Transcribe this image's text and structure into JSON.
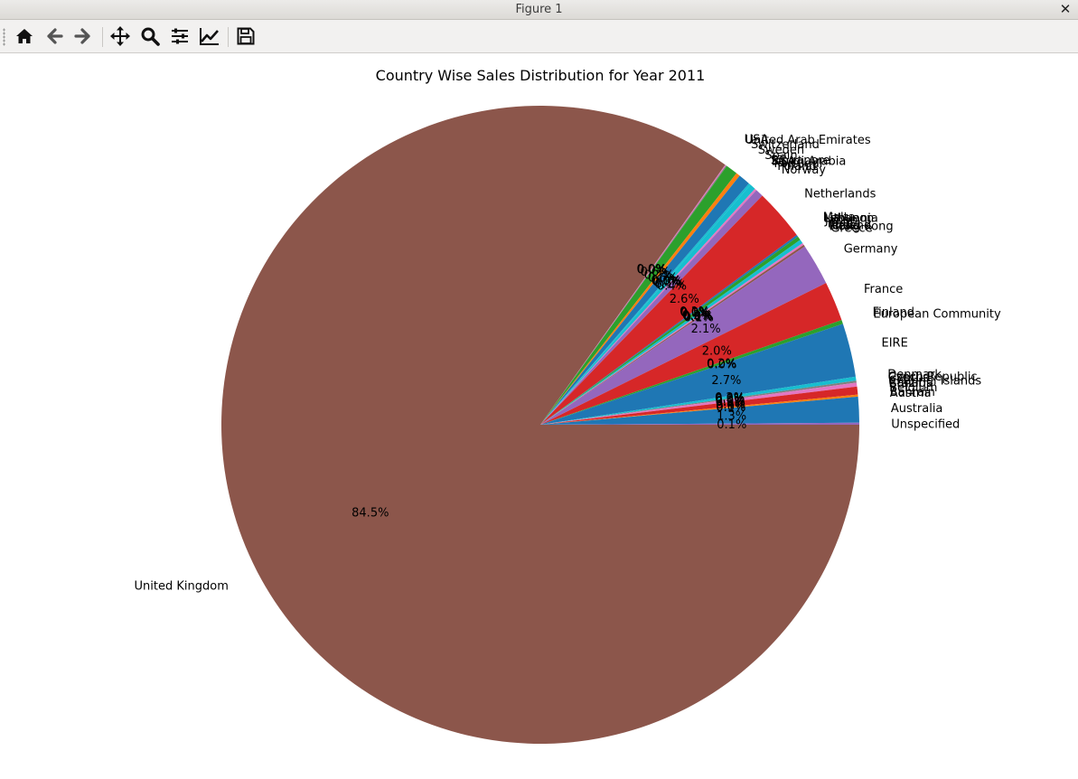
{
  "window": {
    "title": "Figure 1"
  },
  "toolbar": {
    "buttons": [
      {
        "name": "home-button",
        "icon": "home-icon"
      },
      {
        "name": "back-button",
        "icon": "arrow-left-icon"
      },
      {
        "name": "forward-button",
        "icon": "arrow-right-icon"
      },
      {
        "name": "pan-button",
        "icon": "move-icon"
      },
      {
        "name": "zoom-button",
        "icon": "magnifier-icon"
      },
      {
        "name": "configure-subplots-button",
        "icon": "sliders-icon"
      },
      {
        "name": "edit-axis-button",
        "icon": "line-chart-icon"
      },
      {
        "name": "save-button",
        "icon": "floppy-disk-icon"
      }
    ]
  },
  "chart_data": {
    "type": "pie",
    "title": "Country Wise Sales Distribution for Year 2011",
    "startangle_deg": 0,
    "counterclock": false,
    "slices": [
      {
        "label": "United Kingdom",
        "value": 84.5,
        "pct_label": "84.5%",
        "color": "#8c564b"
      },
      {
        "label": "USA",
        "value": 0.05,
        "pct_label": "0.0%",
        "color": "#e377c2"
      },
      {
        "label": "United Arab Emirates",
        "value": 0.05,
        "pct_label": "0.0%",
        "color": "#7f7f7f"
      },
      {
        "label": "Switzerland",
        "value": 0.6,
        "pct_label": "0.6%",
        "color": "#2ca02c"
      },
      {
        "label": "Sweden",
        "value": 0.2,
        "pct_label": "0.2%",
        "color": "#ff7f0e"
      },
      {
        "label": "Spain",
        "value": 0.6,
        "pct_label": "0.6%",
        "color": "#1f77b4"
      },
      {
        "label": "Singapore",
        "value": 0.1,
        "pct_label": "0.1%",
        "color": "#17becf"
      },
      {
        "label": "Saudi Arabia",
        "value": 0.0,
        "pct_label": "0.0%",
        "color": "#bcbd22"
      },
      {
        "label": "RSA",
        "value": 0.0,
        "pct_label": "0.0%",
        "color": "#7f7f7f"
      },
      {
        "label": "Portugal",
        "value": 0.3,
        "pct_label": "0.3%",
        "color": "#17becf"
      },
      {
        "label": "Poland",
        "value": 0.1,
        "pct_label": "0.1%",
        "color": "#e377c2"
      },
      {
        "label": "Norway",
        "value": 0.4,
        "pct_label": "0.4%",
        "color": "#9467bd"
      },
      {
        "label": "Netherlands",
        "value": 2.6,
        "pct_label": "2.6%",
        "color": "#d62728"
      },
      {
        "label": "Malta",
        "value": 0.1,
        "pct_label": "0.1%",
        "color": "#1f77b4"
      },
      {
        "label": "Lithuania",
        "value": 0.0,
        "pct_label": "0.0%",
        "color": "#ff7f0e"
      },
      {
        "label": "Lebanon",
        "value": 0.0,
        "pct_label": "0.0%",
        "color": "#7f7f7f"
      },
      {
        "label": "Japan",
        "value": 0.2,
        "pct_label": "0.2%",
        "color": "#2ca02c"
      },
      {
        "label": "Italy",
        "value": 0.2,
        "pct_label": "0.2%",
        "color": "#17becf"
      },
      {
        "label": "Israel",
        "value": 0.0,
        "pct_label": "0.0%",
        "color": "#bcbd22"
      },
      {
        "label": "Iceland",
        "value": 0.0,
        "pct_label": "0.0%",
        "color": "#ff7f0e"
      },
      {
        "label": "Hong Kong",
        "value": 0.1,
        "pct_label": "0.1%",
        "color": "#e377c2"
      },
      {
        "label": "Greece",
        "value": 0.1,
        "pct_label": "0.1%",
        "color": "#8c564b"
      },
      {
        "label": "Germany",
        "value": 2.1,
        "pct_label": "2.1%",
        "color": "#9467bd"
      },
      {
        "label": "France",
        "value": 2.0,
        "pct_label": "2.0%",
        "color": "#d62728"
      },
      {
        "label": "Finland",
        "value": 0.2,
        "pct_label": "0.2%",
        "color": "#2ca02c"
      },
      {
        "label": "European Community",
        "value": 0.0,
        "pct_label": "0.0%",
        "color": "#ff7f0e"
      },
      {
        "label": "EIRE",
        "value": 2.7,
        "pct_label": "2.7%",
        "color": "#1f77b4"
      },
      {
        "label": "Denmark",
        "value": 0.2,
        "pct_label": "0.2%",
        "color": "#17becf"
      },
      {
        "label": "Czech Republic",
        "value": 0.0,
        "pct_label": "0.0%",
        "color": "#bcbd22"
      },
      {
        "label": "Cyprus",
        "value": 0.1,
        "pct_label": "0.1%",
        "color": "#7f7f7f"
      },
      {
        "label": "Channel Islands",
        "value": 0.2,
        "pct_label": "0.2%",
        "color": "#e377c2"
      },
      {
        "label": "Canada",
        "value": 0.0,
        "pct_label": "0.0%",
        "color": "#8c564b"
      },
      {
        "label": "Brazil",
        "value": 0.0,
        "pct_label": "0.0%",
        "color": "#9467bd"
      },
      {
        "label": "Belgium",
        "value": 0.4,
        "pct_label": "0.4%",
        "color": "#d62728"
      },
      {
        "label": "Bahrain",
        "value": 0.0,
        "pct_label": "0.0%",
        "color": "#2ca02c"
      },
      {
        "label": "Austria",
        "value": 0.1,
        "pct_label": "0.1%",
        "color": "#ff7f0e"
      },
      {
        "label": "Australia",
        "value": 1.3,
        "pct_label": "1.3%",
        "color": "#1f77b4"
      },
      {
        "label": "Unspecified",
        "value": 0.1,
        "pct_label": "0.1%",
        "color": "#9467bd"
      }
    ]
  }
}
